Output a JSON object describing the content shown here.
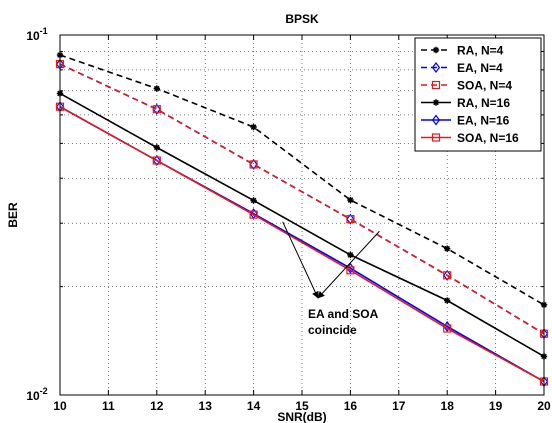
{
  "chart_data": {
    "type": "line",
    "title": "BPSK",
    "xlabel": "SNR(dB)",
    "ylabel": "BER",
    "xlim": [
      10,
      20
    ],
    "ylim": [
      0.01,
      0.1
    ],
    "yscale": "log",
    "grid": true,
    "legend_position": "top-right",
    "x_ticks": [
      "10",
      "11",
      "12",
      "13",
      "14",
      "15",
      "16",
      "17",
      "18",
      "19",
      "20"
    ],
    "y_tick_labels": [
      {
        "base": "10",
        "exp": "-1",
        "value": 0.1
      },
      {
        "base": "10",
        "exp": "-2",
        "value": 0.01
      }
    ],
    "x": [
      10,
      12,
      14,
      16,
      18,
      20
    ],
    "series": [
      {
        "name": "RA, N=4",
        "color": "#000000",
        "dash": "dashed",
        "marker": "asterisk",
        "values": [
          0.088,
          0.071,
          0.0555,
          0.0348,
          0.0255,
          0.0178
        ]
      },
      {
        "name": "EA, N=4",
        "color": "#0000ff",
        "dash": "dashed",
        "marker": "diamond",
        "values": [
          0.083,
          0.0622,
          0.0437,
          0.0308,
          0.0215,
          0.0148
        ]
      },
      {
        "name": "SOA, N=4",
        "color": "#e31a1c",
        "dash": "dashed",
        "marker": "square",
        "values": [
          0.083,
          0.0622,
          0.0437,
          0.0308,
          0.0215,
          0.0148
        ]
      },
      {
        "name": "RA, N=16",
        "color": "#000000",
        "dash": "solid",
        "marker": "asterisk",
        "values": [
          0.0688,
          0.0487,
          0.0347,
          0.0245,
          0.0183,
          0.0128
        ]
      },
      {
        "name": "EA, N=16",
        "color": "#0000ff",
        "dash": "solid",
        "marker": "diamond",
        "values": [
          0.0632,
          0.0448,
          0.0319,
          0.0225,
          0.0155,
          0.0109
        ]
      },
      {
        "name": "SOA, N=16",
        "color": "#e31a1c",
        "dash": "solid",
        "marker": "square",
        "values": [
          0.0632,
          0.0448,
          0.0317,
          0.0222,
          0.0153,
          0.0109
        ]
      }
    ],
    "annotation": {
      "lines": [
        "EA and SOA",
        "coincide"
      ],
      "arrow_targets": [
        {
          "x": 14.6,
          "y": 0.0303
        },
        {
          "x": 16.6,
          "y": 0.0285
        }
      ]
    }
  }
}
